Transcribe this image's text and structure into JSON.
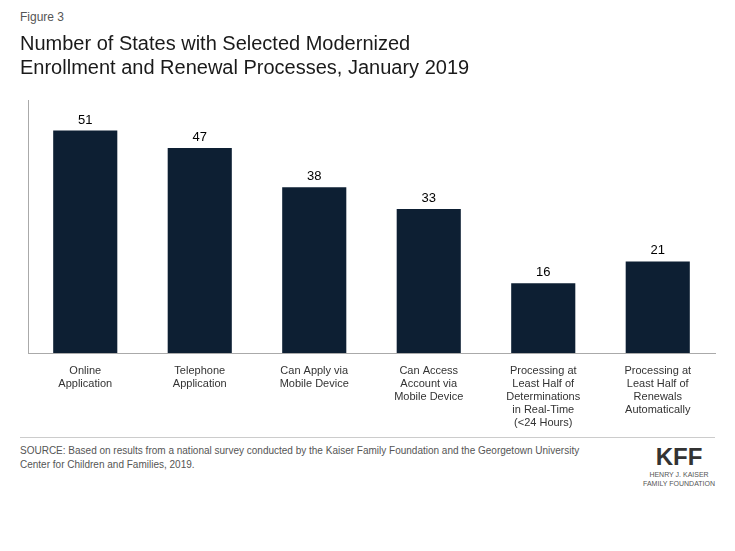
{
  "chart_data": {
    "type": "bar",
    "title": "Number of States with Selected Modernized\nEnrollment and Renewal Processes, January 2019",
    "categories": [
      "Online\nApplication",
      "Telephone\nApplication",
      "Can Apply via\nMobile Device",
      "Can Access\nAccount via\nMobile Device",
      "Processing at\nLeast Half of\nDeterminations\nin Real-Time\n(<24 Hours)",
      "Processing at\nLeast Half of\nRenewals\nAutomatically"
    ],
    "values": [
      51,
      47,
      38,
      33,
      16,
      21
    ],
    "color": "#0d1f33",
    "ylim": [
      0,
      58
    ],
    "grid": false,
    "tick_labels": "x",
    "data_labels": true,
    "annotations": [
      "Figure 3",
      "SOURCE: Based on results from a national survey conducted by the Kaiser Family Foundation and the Georgetown University\nCenter for Children and Families, 2019.",
      "KFF",
      "HENRY J. KAISER\nFAMILY FOUNDATION"
    ]
  }
}
